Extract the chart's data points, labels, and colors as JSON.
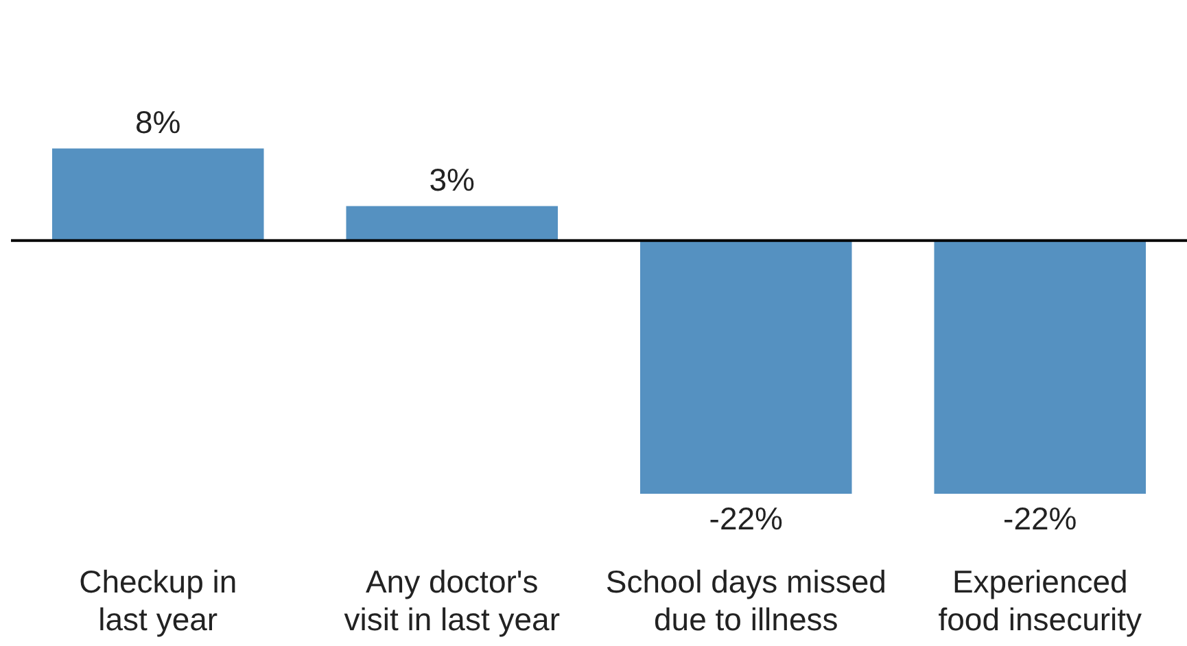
{
  "chart_data": {
    "type": "bar",
    "categories": [
      "Checkup in\nlast year",
      "Any doctor's\nvisit in last year",
      "School days missed\ndue to illness",
      "Experienced\nfood insecurity"
    ],
    "values": [
      8,
      3,
      -22,
      -22
    ],
    "value_labels": [
      "8%",
      "3%",
      "-22%",
      "-22%"
    ],
    "color": "#5591c1",
    "relative": false,
    "grid": false,
    "legend": false
  }
}
